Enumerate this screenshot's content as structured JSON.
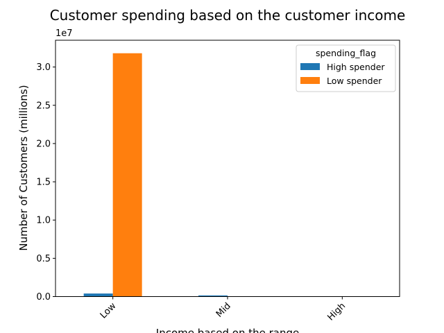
{
  "chart_data": {
    "type": "bar",
    "title": "Customer spending based on the customer income",
    "xlabel": "Income based on the range",
    "ylabel": "Number of Customers (millions)",
    "y_offset_text": "1e7",
    "categories": [
      "Low",
      "Mid",
      "High"
    ],
    "series": [
      {
        "name": "High spender",
        "color": "#1f77b4",
        "values": [
          400000,
          150000,
          20000
        ]
      },
      {
        "name": "Low spender",
        "color": "#ff7f0e",
        "values": [
          31800000,
          30000,
          5000
        ]
      }
    ],
    "ylim": [
      0,
      33500000
    ],
    "yticks": [
      0,
      5000000,
      10000000,
      15000000,
      20000000,
      25000000,
      30000000
    ],
    "ytick_labels": [
      "0.0",
      "0.5",
      "1.0",
      "1.5",
      "2.0",
      "2.5",
      "3.0"
    ],
    "legend": {
      "title": "spending_flag",
      "placement": "top-right"
    },
    "grid": false
  }
}
